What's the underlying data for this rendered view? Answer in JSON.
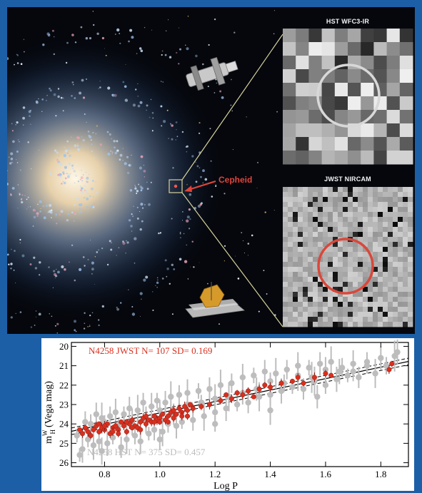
{
  "insets": {
    "hst_title": "HST WFC3-IR",
    "jwst_title": "JWST NIRCAM"
  },
  "cepheid_label": "Cepheid",
  "colors": {
    "background": "#1c5fa6",
    "jwst_points": "#d7301f",
    "hst_points": "#bdbdbd",
    "hst_circle": "#d8d8d8",
    "jwst_circle": "#d9473a",
    "connector": "#d8d29a"
  },
  "icons": [
    "hubble-telescope-icon",
    "jwst-telescope-icon",
    "spiral-galaxy-image"
  ],
  "chart_data": {
    "type": "scatter",
    "xlabel": "Log P",
    "ylabel_main": "m",
    "ylabel_sup": "W",
    "ylabel_sub": "H",
    "ylabel_rest": "(Vega mag)",
    "xlim": [
      0.68,
      1.9
    ],
    "ylim": [
      26.2,
      19.8
    ],
    "y_inverted": true,
    "x_ticks": [
      0.8,
      1.0,
      1.2,
      1.4,
      1.6,
      1.8
    ],
    "x_tick_labels": [
      "0.8",
      "1.0",
      "1.2",
      "1.4",
      "1.6",
      "1.8"
    ],
    "y_ticks": [
      20,
      21,
      22,
      23,
      24,
      25,
      26
    ],
    "y_tick_labels": [
      "20",
      "21",
      "22",
      "23",
      "24",
      "25",
      "26"
    ],
    "fit_line": {
      "x": [
        0.68,
        1.9
      ],
      "y": [
        24.38,
        20.78
      ]
    },
    "fit_band_offset": 0.17,
    "annotations": {
      "jwst": "N4258 JWST N=  107  SD= 0.169",
      "hst": "N4258 HST N=  375 SD= 0.457"
    },
    "series": [
      {
        "name": "N4258 JWST",
        "color": "#d7301f",
        "points": [
          [
            0.71,
            24.3
          ],
          [
            0.72,
            24.5
          ],
          [
            0.73,
            24.2
          ],
          [
            0.74,
            24.4
          ],
          [
            0.75,
            24.6
          ],
          [
            0.76,
            24.3
          ],
          [
            0.77,
            24.1
          ],
          [
            0.78,
            24.4
          ],
          [
            0.79,
            24.2
          ],
          [
            0.8,
            24.3
          ],
          [
            0.81,
            24.0
          ],
          [
            0.82,
            24.5
          ],
          [
            0.83,
            24.2
          ],
          [
            0.84,
            24.1
          ],
          [
            0.85,
            24.3
          ],
          [
            0.86,
            23.9
          ],
          [
            0.87,
            24.1
          ],
          [
            0.88,
            24.4
          ],
          [
            0.89,
            24.0
          ],
          [
            0.9,
            23.8
          ],
          [
            0.91,
            24.1
          ],
          [
            0.92,
            24.2
          ],
          [
            0.93,
            23.9
          ],
          [
            0.94,
            23.7
          ],
          [
            0.95,
            24.0
          ],
          [
            0.96,
            23.8
          ],
          [
            0.97,
            23.9
          ],
          [
            0.98,
            23.6
          ],
          [
            0.99,
            23.8
          ],
          [
            1.0,
            23.7
          ],
          [
            1.01,
            23.5
          ],
          [
            1.02,
            23.8
          ],
          [
            1.03,
            23.6
          ],
          [
            1.04,
            23.4
          ],
          [
            1.05,
            23.7
          ],
          [
            1.06,
            23.5
          ],
          [
            1.07,
            23.2
          ],
          [
            1.08,
            23.4
          ],
          [
            1.09,
            23.1
          ],
          [
            1.1,
            23.3
          ],
          [
            1.11,
            23.0
          ],
          [
            1.12,
            23.2
          ],
          [
            1.15,
            23.1
          ],
          [
            1.18,
            23.0
          ],
          [
            1.22,
            22.8
          ],
          [
            1.24,
            22.5
          ],
          [
            1.26,
            22.7
          ],
          [
            1.28,
            22.4
          ],
          [
            1.3,
            22.5
          ],
          [
            1.32,
            22.3
          ],
          [
            1.34,
            22.6
          ],
          [
            1.36,
            22.2
          ],
          [
            1.38,
            22.0
          ],
          [
            1.4,
            22.1
          ],
          [
            1.44,
            21.9
          ],
          [
            1.48,
            21.8
          ],
          [
            1.5,
            21.6
          ],
          [
            1.52,
            21.9
          ],
          [
            1.56,
            21.6
          ],
          [
            1.6,
            21.4
          ],
          [
            1.62,
            21.5
          ],
          [
            1.83,
            21.2
          ],
          [
            1.84,
            20.9
          ],
          [
            0.8,
            24.1
          ],
          [
            0.85,
            24.5
          ],
          [
            0.9,
            24.2
          ],
          [
            0.95,
            23.6
          ],
          [
            1.0,
            23.9
          ],
          [
            1.05,
            23.3
          ],
          [
            1.1,
            23.6
          ],
          [
            0.78,
            24.0
          ],
          [
            0.83,
            24.4
          ],
          [
            0.88,
            23.9
          ],
          [
            0.93,
            24.3
          ],
          [
            0.98,
            23.9
          ],
          [
            1.03,
            23.9
          ],
          [
            1.08,
            23.6
          ]
        ]
      },
      {
        "name": "N4258 HST",
        "color": "#bdbdbd",
        "points": [
          [
            0.7,
            24.6
          ],
          [
            0.72,
            25.3
          ],
          [
            0.73,
            23.9
          ],
          [
            0.74,
            24.8
          ],
          [
            0.76,
            25.1
          ],
          [
            0.77,
            23.5
          ],
          [
            0.78,
            24.9
          ],
          [
            0.79,
            23.7
          ],
          [
            0.81,
            25.0
          ],
          [
            0.82,
            23.6
          ],
          [
            0.83,
            24.7
          ],
          [
            0.84,
            23.4
          ],
          [
            0.86,
            25.2
          ],
          [
            0.87,
            23.5
          ],
          [
            0.88,
            24.8
          ],
          [
            0.89,
            23.2
          ],
          [
            0.91,
            24.6
          ],
          [
            0.92,
            23.3
          ],
          [
            0.93,
            24.9
          ],
          [
            0.94,
            22.9
          ],
          [
            0.96,
            24.5
          ],
          [
            0.97,
            23.1
          ],
          [
            0.98,
            24.3
          ],
          [
            0.99,
            22.8
          ],
          [
            1.01,
            24.4
          ],
          [
            1.02,
            22.9
          ],
          [
            1.03,
            24.0
          ],
          [
            1.04,
            22.6
          ],
          [
            1.06,
            24.1
          ],
          [
            1.07,
            22.5
          ],
          [
            1.08,
            23.9
          ],
          [
            1.1,
            22.4
          ],
          [
            1.12,
            23.8
          ],
          [
            1.14,
            22.3
          ],
          [
            1.16,
            23.6
          ],
          [
            1.18,
            22.2
          ],
          [
            1.2,
            23.4
          ],
          [
            1.22,
            22.0
          ],
          [
            1.24,
            23.2
          ],
          [
            1.26,
            21.9
          ],
          [
            1.28,
            23.0
          ],
          [
            1.3,
            21.6
          ],
          [
            1.32,
            22.9
          ],
          [
            1.34,
            21.5
          ],
          [
            1.36,
            22.6
          ],
          [
            1.38,
            21.3
          ],
          [
            1.4,
            22.5
          ],
          [
            1.42,
            21.4
          ],
          [
            1.44,
            22.3
          ],
          [
            1.46,
            21.2
          ],
          [
            1.48,
            22.1
          ],
          [
            1.5,
            21.0
          ],
          [
            1.52,
            22.2
          ],
          [
            1.54,
            21.1
          ],
          [
            1.56,
            21.8
          ],
          [
            1.58,
            20.9
          ],
          [
            1.6,
            22.0
          ],
          [
            1.62,
            20.8
          ],
          [
            1.64,
            21.7
          ],
          [
            1.66,
            21.1
          ],
          [
            1.68,
            21.5
          ],
          [
            1.7,
            20.9
          ],
          [
            1.72,
            21.6
          ],
          [
            1.75,
            21.0
          ],
          [
            1.78,
            21.4
          ],
          [
            1.8,
            20.6
          ],
          [
            1.82,
            21.0
          ],
          [
            1.85,
            20.5
          ],
          [
            1.86,
            20.3
          ],
          [
            0.75,
            24.0
          ],
          [
            0.85,
            24.1
          ],
          [
            0.95,
            23.8
          ],
          [
            1.05,
            23.5
          ],
          [
            1.15,
            22.9
          ],
          [
            1.25,
            22.6
          ],
          [
            1.35,
            22.2
          ],
          [
            1.45,
            21.9
          ],
          [
            1.55,
            21.6
          ],
          [
            1.65,
            21.3
          ],
          [
            1.75,
            20.8
          ],
          [
            0.8,
            23.9
          ],
          [
            0.9,
            23.9
          ],
          [
            1.0,
            23.3
          ],
          [
            1.1,
            23.0
          ],
          [
            1.2,
            22.7
          ],
          [
            1.3,
            22.4
          ],
          [
            1.4,
            21.8
          ],
          [
            1.5,
            21.5
          ],
          [
            1.6,
            21.2
          ],
          [
            1.7,
            21.3
          ],
          [
            0.71,
            25.6
          ],
          [
            0.79,
            25.4
          ],
          [
            1.0,
            24.8
          ],
          [
            1.2,
            24.0
          ],
          [
            1.4,
            23.3
          ],
          [
            1.57,
            22.6
          ]
        ]
      }
    ]
  }
}
